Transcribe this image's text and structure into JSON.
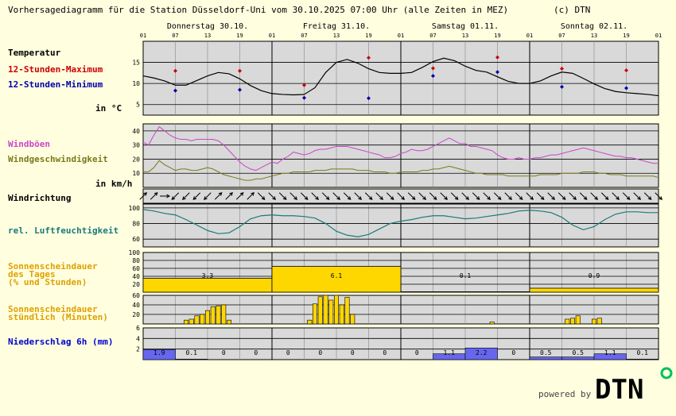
{
  "header": {
    "title": "Vorhersagediagramm für die Station Düsseldorf-Uni vom 30.10.2025 07:00 Uhr (alle Zeiten in MEZ)",
    "copyright": "(c) DTN"
  },
  "days": [
    "Donnerstag 30.10.",
    "Freitag 31.10.",
    "Samstag 01.11.",
    "Sonntag 02.11."
  ],
  "hour_ticks": [
    "01",
    "07",
    "13",
    "19",
    "01",
    "07",
    "13",
    "19",
    "01",
    "07",
    "13",
    "19",
    "01",
    "07",
    "13",
    "19",
    "01"
  ],
  "labels": {
    "temperatur": "Temperatur",
    "tmax": "12-Stunden-Maximum",
    "tmin": "12-Stunden-Minimum",
    "temp_unit": "in °C",
    "windboeen": "Windböen",
    "windgeschw": "Windgeschwindigkeit",
    "wind_unit": "in km/h",
    "windrichtung": "Windrichtung",
    "feuchte": "rel. Luftfeuchtigkeit",
    "sonne_tag_1": "Sonnenscheindauer",
    "sonne_tag_2": "des Tages",
    "sonne_tag_3": "(% und Stunden)",
    "sonne_std_1": "Sonnenscheindauer",
    "sonne_std_2": "stündlich (Minuten)",
    "niederschlag": "Niederschlag 6h (mm)"
  },
  "footer": {
    "powered_by": "powered by",
    "brand": "DTN"
  },
  "colors": {
    "background": "#ffffe0",
    "plot": "#d9d9d9",
    "temperature": "#000000",
    "tmax": "#cc0000",
    "tmin": "#0000aa",
    "gusts": "#cc44cc",
    "wind": "#7a7a1a",
    "humidity": "#1a7a7a",
    "sunshine": "#ffd700",
    "sun_label": "#e0a000",
    "precip": "#6666ee",
    "precip_label": "#0000cc"
  },
  "chart_data": {
    "type": "line",
    "x_unit": "hour offset from 30.10. 01:00 MEZ",
    "x_range": [
      0,
      96
    ],
    "temperature": {
      "ylim": [
        2.5,
        20
      ],
      "yticks": [
        5,
        10,
        15
      ],
      "x": [
        0,
        2,
        4,
        6,
        8,
        10,
        12,
        14,
        16,
        18,
        20,
        22,
        24,
        26,
        28,
        30,
        32,
        34,
        36,
        38,
        40,
        42,
        44,
        46,
        48,
        50,
        52,
        54,
        56,
        58,
        60,
        62,
        64,
        66,
        68,
        70,
        72,
        74,
        76,
        78,
        80,
        82,
        84,
        86,
        88,
        90,
        92,
        94,
        96
      ],
      "values": [
        11.8,
        11.3,
        10.6,
        9.6,
        9.6,
        10.7,
        11.8,
        12.6,
        12.3,
        11.1,
        9.5,
        8.3,
        7.6,
        7.4,
        7.3,
        7.4,
        9.0,
        12.6,
        15.0,
        15.7,
        14.8,
        13.5,
        12.6,
        12.4,
        12.4,
        12.6,
        13.8,
        15.2,
        16.0,
        15.4,
        14.1,
        13.1,
        12.7,
        11.6,
        10.5,
        10.0,
        10.0,
        10.6,
        11.8,
        12.7,
        12.4,
        11.2,
        9.9,
        8.8,
        8.1,
        7.8,
        7.6,
        7.4,
        7.1
      ],
      "max_x": [
        6,
        18,
        30,
        42,
        54,
        66,
        78
      ],
      "max_values": [
        13.0,
        13.0,
        9.6,
        16.1,
        13.6,
        16.2,
        13.5
      ],
      "max_extra": {
        "x": 90,
        "value": 13.1
      },
      "min_x": [
        6,
        18,
        30,
        42,
        54,
        66,
        78,
        90
      ],
      "min_values": [
        8.3,
        8.5,
        6.6,
        6.5,
        11.8,
        12.7,
        9.2,
        8.9
      ]
    },
    "wind": {
      "ylim": [
        0,
        45
      ],
      "yticks": [
        10,
        20,
        30,
        40
      ],
      "x": [
        0,
        1,
        2,
        3,
        4,
        5,
        6,
        7,
        8,
        9,
        10,
        11,
        12,
        13,
        14,
        15,
        16,
        17,
        18,
        19,
        20,
        21,
        22,
        23,
        24,
        25,
        26,
        27,
        28,
        29,
        30,
        31,
        32,
        33,
        34,
        35,
        36,
        37,
        38,
        39,
        40,
        41,
        42,
        43,
        44,
        45,
        46,
        47,
        48,
        49,
        50,
        51,
        52,
        53,
        54,
        55,
        56,
        57,
        58,
        59,
        60,
        61,
        62,
        63,
        64,
        65,
        66,
        67,
        68,
        69,
        70,
        71,
        72,
        73,
        74,
        75,
        76,
        77,
        78,
        79,
        80,
        81,
        82,
        83,
        84,
        85,
        86,
        87,
        88,
        89,
        90,
        91,
        92,
        93,
        94,
        95,
        96
      ],
      "gusts": [
        32,
        30,
        37,
        43,
        40,
        37,
        35,
        34,
        34,
        33,
        34,
        34,
        34,
        34,
        33,
        30,
        26,
        22,
        18,
        15,
        13,
        12,
        14,
        16,
        18,
        17,
        20,
        22,
        25,
        24,
        23,
        24,
        26,
        27,
        27,
        28,
        29,
        29,
        29,
        28,
        27,
        26,
        25,
        24,
        23,
        21,
        21,
        22,
        24,
        25,
        27,
        26,
        26,
        27,
        29,
        31,
        33,
        35,
        33,
        31,
        31,
        29,
        29,
        28,
        27,
        26,
        23,
        21,
        20,
        20,
        21,
        20,
        20,
        21,
        21,
        22,
        23,
        23,
        24,
        25,
        26,
        27,
        28,
        27,
        26,
        25,
        24,
        23,
        22,
        22,
        21,
        21,
        20,
        19,
        18,
        17,
        17
      ],
      "speed": [
        11,
        11,
        14,
        19,
        16,
        14,
        12,
        13,
        13,
        12,
        12,
        13,
        14,
        13,
        11,
        9,
        8,
        7,
        6,
        5,
        5,
        6,
        6,
        7,
        8,
        9,
        10,
        10,
        11,
        11,
        11,
        11,
        12,
        12,
        12,
        13,
        13,
        13,
        13,
        13,
        12,
        12,
        12,
        11,
        11,
        11,
        10,
        10,
        11,
        11,
        11,
        11,
        12,
        12,
        13,
        13,
        14,
        15,
        14,
        13,
        12,
        11,
        10,
        10,
        9,
        9,
        9,
        9,
        8,
        8,
        8,
        8,
        8,
        8,
        9,
        9,
        9,
        9,
        10,
        10,
        10,
        10,
        11,
        11,
        11,
        10,
        10,
        9,
        9,
        9,
        8,
        8,
        8,
        8,
        8,
        8,
        7
      ]
    },
    "wind_direction": {
      "x": [
        0,
        2,
        4,
        6,
        8,
        10,
        12,
        14,
        16,
        18,
        20,
        22,
        24,
        26,
        28,
        30,
        32,
        34,
        36,
        38,
        40,
        42,
        44,
        46,
        48,
        50,
        52,
        54,
        56,
        58,
        60,
        62,
        64,
        66,
        68,
        70,
        72,
        74,
        76,
        78,
        80,
        82,
        84,
        86,
        88,
        90,
        92,
        94,
        96
      ],
      "arrows": [
        "NE",
        "NE",
        "E",
        "SW",
        "SW",
        "SW",
        "SW",
        "NE",
        "NE",
        "NE",
        "NE",
        "SE",
        "SE",
        "SE",
        "SE",
        "SE",
        "SE",
        "SE",
        "SE",
        "SE",
        "SE",
        "SE",
        "SE",
        "SE",
        "SE",
        "SE",
        "SE",
        "SE",
        "SE",
        "SE",
        "SE",
        "SE",
        "SE",
        "SE",
        "SE",
        "SE",
        "SE",
        "SE",
        "SE",
        "SE",
        "SE",
        "SE",
        "SE",
        "SE",
        "SE",
        "SE",
        "SE",
        "SE",
        "SE"
      ]
    },
    "humidity": {
      "ylim": [
        50,
        105
      ],
      "yticks": [
        60,
        80,
        100
      ],
      "x": [
        0,
        2,
        4,
        6,
        8,
        10,
        12,
        14,
        16,
        18,
        20,
        22,
        24,
        26,
        28,
        30,
        32,
        34,
        36,
        38,
        40,
        42,
        44,
        46,
        48,
        50,
        52,
        54,
        56,
        58,
        60,
        62,
        64,
        66,
        68,
        70,
        72,
        74,
        76,
        78,
        80,
        82,
        84,
        86,
        88,
        90,
        92,
        94,
        96
      ],
      "values": [
        98,
        96,
        93,
        91,
        85,
        78,
        71,
        67,
        68,
        76,
        86,
        90,
        91,
        90,
        90,
        89,
        87,
        80,
        70,
        65,
        63,
        66,
        73,
        80,
        83,
        85,
        88,
        90,
        90,
        88,
        86,
        87,
        89,
        91,
        93,
        96,
        97,
        96,
        94,
        88,
        78,
        72,
        76,
        85,
        92,
        95,
        95,
        94,
        94
      ]
    },
    "sunshine_daily": {
      "ylim": [
        0,
        100
      ],
      "yticks": [
        20,
        40,
        60,
        80,
        100
      ],
      "days": [
        "Donnerstag 30.10.",
        "Freitag 31.10.",
        "Samstag 01.11.",
        "Sonntag 02.11."
      ],
      "percent": [
        35,
        65,
        1,
        10
      ],
      "hours": [
        "3.3",
        "6.1",
        "0.1",
        "0.9"
      ]
    },
    "sunshine_hourly": {
      "ylim": [
        0,
        60
      ],
      "yticks": [
        20,
        40,
        60
      ],
      "x": [
        8,
        9,
        10,
        11,
        12,
        13,
        14,
        15,
        16,
        17,
        31,
        32,
        33,
        34,
        35,
        36,
        37,
        38,
        39,
        40,
        65,
        79,
        80,
        81,
        82,
        84,
        85
      ],
      "minutes": [
        8,
        10,
        17,
        20,
        28,
        36,
        38,
        40,
        8,
        0,
        8,
        42,
        57,
        60,
        50,
        60,
        40,
        56,
        20,
        0,
        4,
        10,
        12,
        17,
        0,
        10,
        12
      ]
    },
    "precipitation": {
      "ylim": [
        0,
        6
      ],
      "yticks": [
        2,
        4,
        6
      ],
      "x_start": [
        0,
        6,
        12,
        18,
        24,
        30,
        36,
        42,
        48,
        54,
        60,
        66,
        72,
        78,
        84,
        90
      ],
      "values": [
        1.9,
        0.1,
        0,
        0,
        0,
        0,
        0,
        0,
        0,
        1.1,
        2.2,
        0,
        0.5,
        0.5,
        1.1,
        0.1
      ],
      "labels": [
        "1.9",
        "0.1",
        "0",
        "0",
        "0",
        "0",
        "0",
        "0",
        "0",
        "1.1",
        "2.2",
        "0",
        "0.5",
        "0.5",
        "1.1",
        "0.1"
      ]
    }
  }
}
